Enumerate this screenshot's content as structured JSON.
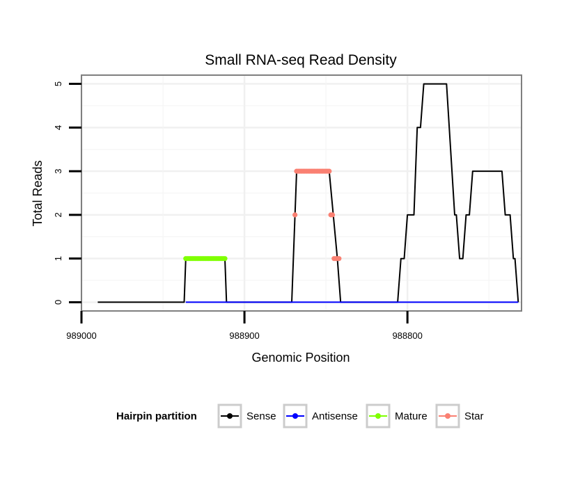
{
  "chart_data": {
    "type": "line",
    "title": "Small RNA-seq Read Density",
    "xlabel": "Genomic Position",
    "ylabel": "Total Reads",
    "xlim": [
      989000,
      988730
    ],
    "ylim": [
      -0.2,
      5.2
    ],
    "x_reversed": true,
    "x_ticks": [
      989000,
      988900,
      988800
    ],
    "x_tick_labels": [
      "989000",
      "988900",
      "988800"
    ],
    "y_ticks": [
      0,
      1,
      2,
      3,
      4,
      5
    ],
    "y_tick_labels": [
      "0",
      "1",
      "2",
      "3",
      "4",
      "5"
    ],
    "grid": true,
    "legend": {
      "title": "Hairpin partition",
      "position": "bottom",
      "entries": [
        {
          "name": "Sense",
          "color": "#000000"
        },
        {
          "name": "Antisense",
          "color": "#0000ff"
        },
        {
          "name": "Mature",
          "color": "#7fff00"
        },
        {
          "name": "Star",
          "color": "#fa8072"
        }
      ]
    },
    "series": [
      {
        "name": "Sense",
        "kind": "line",
        "color": "#000000",
        "points": [
          [
            988990,
            0
          ],
          [
            988937,
            0
          ],
          [
            988936,
            1
          ],
          [
            988912,
            1
          ],
          [
            988911,
            0
          ],
          [
            988871,
            0
          ],
          [
            988868,
            3
          ],
          [
            988848,
            3
          ],
          [
            988843,
            1
          ],
          [
            988841,
            0
          ],
          [
            988806,
            0
          ],
          [
            988804,
            1
          ],
          [
            988802,
            1
          ],
          [
            988800,
            2
          ],
          [
            988796,
            2
          ],
          [
            988794,
            4
          ],
          [
            988792,
            4
          ],
          [
            988790,
            5
          ],
          [
            988776,
            5
          ],
          [
            988771,
            2
          ],
          [
            988770,
            2
          ],
          [
            988768,
            1
          ],
          [
            988766,
            1
          ],
          [
            988764,
            2
          ],
          [
            988762,
            2
          ],
          [
            988760,
            3
          ],
          [
            988742,
            3
          ],
          [
            988740,
            2
          ],
          [
            988737,
            2
          ],
          [
            988735,
            1
          ],
          [
            988734,
            1
          ],
          [
            988732,
            0
          ]
        ]
      },
      {
        "name": "Antisense",
        "kind": "line",
        "color": "#0000ff",
        "points": [
          [
            988936,
            0
          ],
          [
            988732,
            0
          ]
        ]
      },
      {
        "name": "Mature",
        "kind": "points",
        "color": "#7fff00",
        "points": [
          [
            988936,
            1
          ],
          [
            988935,
            1
          ],
          [
            988934,
            1
          ],
          [
            988933,
            1
          ],
          [
            988932,
            1
          ],
          [
            988931,
            1
          ],
          [
            988930,
            1
          ],
          [
            988929,
            1
          ],
          [
            988928,
            1
          ],
          [
            988927,
            1
          ],
          [
            988926,
            1
          ],
          [
            988925,
            1
          ],
          [
            988924,
            1
          ],
          [
            988923,
            1
          ],
          [
            988922,
            1
          ],
          [
            988921,
            1
          ],
          [
            988920,
            1
          ],
          [
            988919,
            1
          ],
          [
            988918,
            1
          ],
          [
            988917,
            1
          ],
          [
            988916,
            1
          ],
          [
            988915,
            1
          ],
          [
            988914,
            1
          ],
          [
            988913,
            1
          ],
          [
            988912,
            1
          ]
        ]
      },
      {
        "name": "Star",
        "kind": "points",
        "color": "#fa8072",
        "points": [
          [
            988869,
            2
          ],
          [
            988868,
            3
          ],
          [
            988867,
            3
          ],
          [
            988866,
            3
          ],
          [
            988865,
            3
          ],
          [
            988864,
            3
          ],
          [
            988863,
            3
          ],
          [
            988862,
            3
          ],
          [
            988861,
            3
          ],
          [
            988860,
            3
          ],
          [
            988859,
            3
          ],
          [
            988858,
            3
          ],
          [
            988857,
            3
          ],
          [
            988856,
            3
          ],
          [
            988855,
            3
          ],
          [
            988854,
            3
          ],
          [
            988853,
            3
          ],
          [
            988852,
            3
          ],
          [
            988851,
            3
          ],
          [
            988850,
            3
          ],
          [
            988849,
            3
          ],
          [
            988848,
            3
          ],
          [
            988847,
            2
          ],
          [
            988846,
            2
          ],
          [
            988845,
            1
          ],
          [
            988844,
            1
          ],
          [
            988843,
            1
          ],
          [
            988842,
            1
          ]
        ]
      }
    ]
  }
}
